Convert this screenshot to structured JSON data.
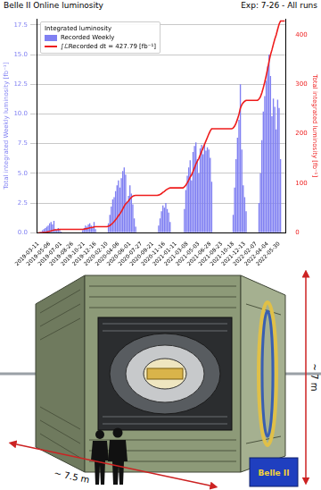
{
  "chart_data": {
    "type": "bar",
    "title": "Belle II Online luminosity",
    "subtitle": "Exp: 7-26 - All runs",
    "ylabel": "Total integrated Weekly luminosity [fb⁻¹]",
    "y2label": "Total integrated luminosity [fb⁻¹]",
    "legend_title": "Integrated luminosity",
    "legend": "upper left",
    "grid": true,
    "categories": [
      "2019-03-11",
      null,
      null,
      null,
      null,
      null,
      null,
      null,
      "2019-05-06",
      null,
      null,
      null,
      null,
      null,
      null,
      null,
      "2019-07-01",
      null,
      null,
      null,
      null,
      null,
      null,
      null,
      "2019-08-26",
      null,
      null,
      null,
      null,
      null,
      null,
      null,
      "2019-10-21",
      null,
      null,
      null,
      null,
      null,
      null,
      null,
      "2019-12-16",
      null,
      null,
      null,
      null,
      null,
      null,
      null,
      "2020-02-10",
      null,
      null,
      null,
      null,
      null,
      null,
      null,
      "2020-04-06",
      null,
      null,
      null,
      null,
      null,
      null,
      null,
      "2020-06-01",
      null,
      null,
      null,
      null,
      null,
      null,
      null,
      "2020-07-27",
      null,
      null,
      null,
      null,
      null,
      null,
      null,
      "2020-09-21",
      null,
      null,
      null,
      null,
      null,
      null,
      null,
      "2020-11-16",
      null,
      null,
      null,
      null,
      null,
      null,
      null,
      "2021-01-11",
      null,
      null,
      null,
      null,
      null,
      null,
      null,
      "2021-03-08",
      null,
      null,
      null,
      null,
      null,
      null,
      null,
      "2021-05-03",
      null,
      null,
      null,
      null,
      null,
      null,
      null,
      "2021-06-28",
      null,
      null,
      null,
      null,
      null,
      null,
      null,
      "2021-08-23",
      null,
      null,
      null,
      null,
      null,
      null,
      null,
      "2021-10-18",
      null,
      null,
      null,
      null,
      null,
      null,
      null,
      "2021-12-13",
      null,
      null,
      null,
      null,
      null,
      null,
      null,
      "2022-02-07",
      null,
      null,
      null,
      null,
      null,
      null,
      null,
      "2022-04-04",
      null,
      null,
      null,
      null,
      null,
      null,
      null,
      "2022-05-30",
      null,
      null,
      null,
      null
    ],
    "series": [
      {
        "name": "Recorded Weekly",
        "type": "bar",
        "color": "#8080f2",
        "axis": "y",
        "values": [
          0,
          0,
          0.1,
          0.2,
          0.3,
          0.4,
          0.5,
          0.6,
          0.8,
          0.9,
          0.7,
          1.0,
          0.3,
          0.2,
          0.4,
          0.2,
          0.1,
          0,
          0,
          0,
          0,
          0,
          0,
          0,
          0,
          0,
          0,
          0,
          0,
          0,
          0,
          0.2,
          0.4,
          0.6,
          0.5,
          0.7,
          0.8,
          0.6,
          0.5,
          0.9,
          0.3,
          0,
          0,
          0,
          0,
          0,
          0,
          0,
          0,
          0.8,
          1.5,
          2.2,
          2.8,
          3.0,
          3.5,
          4.0,
          4.4,
          3.8,
          4.6,
          5.2,
          5.5,
          4.9,
          2.6,
          3.1,
          4.0,
          3.3,
          2.4,
          1.2,
          0.5,
          0,
          0,
          0,
          0,
          0,
          0,
          0,
          0,
          0,
          0,
          0,
          0,
          0,
          0,
          0,
          0.6,
          1.2,
          1.8,
          2.3,
          2.1,
          2.5,
          2.0,
          1.7,
          0.9,
          0,
          0,
          0,
          0,
          0,
          0,
          0,
          0,
          0,
          2.0,
          3.6,
          4.8,
          5.5,
          6.1,
          4.4,
          6.8,
          7.3,
          7.6,
          6.2,
          5.0,
          7.1,
          7.4,
          6.6,
          7.5,
          6.9,
          7.2,
          7.0,
          6.3,
          4.3,
          0,
          0,
          0,
          0,
          0,
          0,
          0,
          0,
          0,
          0,
          0,
          0,
          0,
          0,
          1.5,
          3.8,
          6.2,
          8.0,
          9.5,
          12.5,
          7.0,
          4.0,
          3.0,
          1.8,
          0,
          0,
          0,
          0,
          0,
          0,
          0,
          0,
          2.5,
          5.0,
          7.8,
          10.2,
          11.5,
          12.8,
          14.0,
          15.0,
          13.2,
          9.8,
          11.3,
          10.6,
          8.7,
          11.2,
          10.5,
          6.19,
          0,
          0,
          0
        ]
      },
      {
        "name": "∫ℒRecorded dt = 427.79 [fb⁻¹]",
        "type": "line",
        "color": "#ee1c1c",
        "axis": "y2",
        "values": [
          0,
          0,
          0.1,
          0.3,
          0.6,
          1.0,
          1.5,
          2.1,
          2.9,
          3.8,
          4.5,
          5.5,
          5.8,
          6.0,
          6.4,
          6.6,
          6.7,
          6.7,
          6.7,
          6.7,
          6.7,
          6.7,
          6.7,
          6.7,
          6.7,
          6.7,
          6.7,
          6.7,
          6.7,
          6.7,
          6.7,
          6.9,
          7.3,
          7.9,
          8.4,
          9.1,
          9.9,
          10.5,
          11.0,
          11.9,
          12.2,
          12.2,
          12.2,
          12.2,
          12.2,
          12.2,
          12.2,
          12.2,
          12.2,
          13.0,
          14.5,
          16.7,
          19.5,
          22.5,
          26.0,
          30.0,
          34.4,
          38.2,
          42.8,
          48.0,
          53.5,
          58.4,
          61.0,
          64.1,
          68.1,
          71.4,
          73.8,
          75.0,
          75.5,
          75.5,
          75.5,
          75.5,
          75.5,
          75.5,
          75.5,
          75.5,
          75.5,
          75.5,
          75.5,
          75.5,
          75.5,
          75.5,
          75.5,
          75.5,
          76.1,
          77.3,
          79.1,
          81.4,
          83.5,
          86.0,
          88.0,
          89.7,
          90.6,
          90.6,
          90.6,
          90.6,
          90.6,
          90.6,
          90.6,
          90.6,
          90.6,
          90.6,
          92.6,
          96.2,
          101.0,
          106.5,
          112.6,
          117.0,
          123.8,
          131.1,
          138.7,
          144.9,
          149.9,
          157.0,
          164.4,
          171.0,
          178.5,
          185.4,
          192.6,
          199.6,
          205.9,
          210.2,
          210.2,
          210.2,
          210.2,
          210.2,
          210.2,
          210.2,
          210.2,
          210.2,
          210.2,
          210.2,
          210.2,
          210.2,
          210.2,
          210.2,
          211.7,
          215.5,
          221.7,
          229.7,
          239.2,
          251.7,
          258.7,
          262.7,
          265.7,
          267.5,
          267.5,
          267.5,
          267.5,
          267.5,
          267.5,
          267.5,
          267.5,
          267.5,
          270.0,
          275.0,
          282.8,
          293.0,
          304.5,
          317.3,
          331.3,
          346.3,
          359.5,
          369.3,
          380.6,
          391.2,
          399.9,
          411.1,
          421.6,
          427.79,
          427.79,
          427.79,
          427.79
        ]
      }
    ],
    "ylim": [
      0,
      18
    ],
    "yticks": [
      {
        "value": 0,
        "label": "0.0"
      },
      2.5,
      {
        "value": 5,
        "label": "5.0"
      },
      7.5,
      {
        "value": 10,
        "label": "10.0"
      },
      12.5,
      {
        "value": 15,
        "label": "15.0"
      },
      17.5
    ],
    "y2lim": [
      0,
      432
    ],
    "y2ticks": [
      0,
      100,
      200,
      300,
      400
    ]
  },
  "detector": {
    "height_label": "~ 7 m",
    "length_label": "~ 7.5 m",
    "logo": "Belle II"
  }
}
